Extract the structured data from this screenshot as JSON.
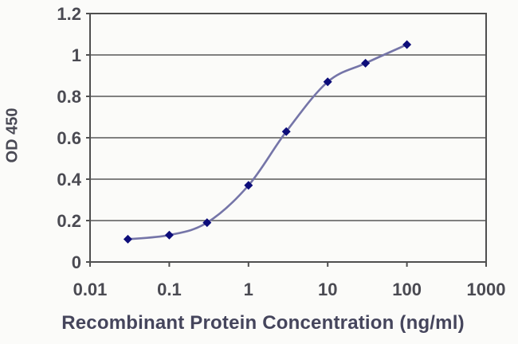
{
  "chart_data": {
    "type": "line",
    "title": "",
    "xlabel": "Recombinant Protein Concentration (ng/ml)",
    "ylabel": "OD 450",
    "x_scale": "log",
    "x": [
      0.03,
      0.1,
      0.3,
      1,
      3,
      10,
      30,
      100
    ],
    "y": [
      0.11,
      0.13,
      0.19,
      0.37,
      0.63,
      0.87,
      0.96,
      1.05
    ],
    "xlim": [
      0.01,
      1000
    ],
    "ylim": [
      0,
      1.2
    ],
    "x_tick_values": [
      0.01,
      0.1,
      1,
      10,
      100,
      1000
    ],
    "x_tick_labels": [
      "0.01",
      "0.1",
      "1",
      "10",
      "100",
      "1000"
    ],
    "y_tick_values": [
      0,
      0.2,
      0.4,
      0.6,
      0.8,
      1,
      1.2
    ],
    "y_tick_labels": [
      "0",
      "0.2",
      "0.4",
      "0.6",
      "0.8",
      "1",
      "1.2"
    ],
    "grid": "horizontal",
    "legend": "none",
    "marker": "diamond",
    "line_smooth": true,
    "colors": {
      "line": "#7575a8",
      "marker": "#0d0d7a",
      "grid": "#6e6e6e",
      "axis": "#4f4f4f",
      "tick_text": "#4a4a52",
      "title_text": "#45455c"
    }
  }
}
